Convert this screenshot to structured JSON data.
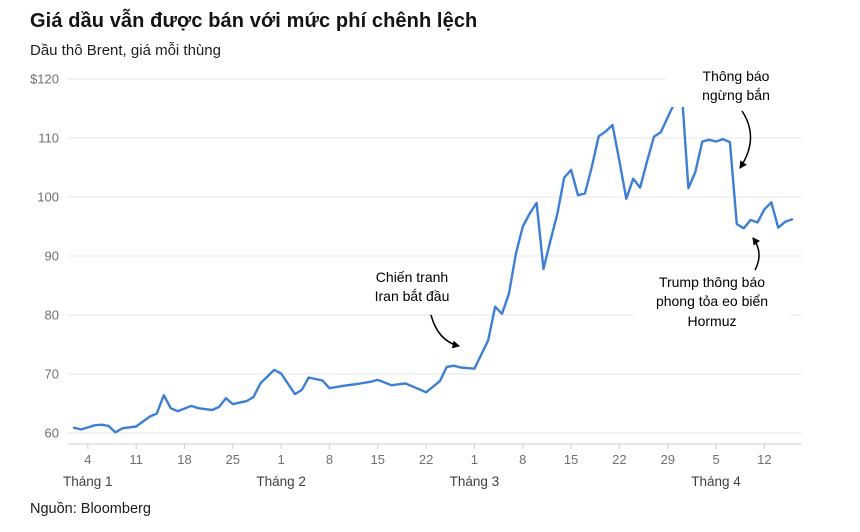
{
  "header": {
    "title": "Giá dầu vẫn được bán với mức phí chênh lệch",
    "subtitle": "Dầu thô Brent, giá mỗi thùng"
  },
  "footer": {
    "source": "Nguồn: Bloomberg"
  },
  "chart_data": {
    "type": "line",
    "title": "Giá dầu vẫn được bán với mức phí chênh lệch",
    "subtitle": "Dầu thô Brent, giá mỗi thùng",
    "ylabel": "USD per barrel",
    "ylim": [
      60,
      120
    ],
    "grid": true,
    "legend": false,
    "line_color": "#3e7fd6",
    "grid_color": "#e4e4e4",
    "axis_color": "#cfcfcf",
    "y_ticks": [
      {
        "value": 120,
        "label": "$120"
      },
      {
        "value": 110,
        "label": "110"
      },
      {
        "value": 100,
        "label": "100"
      },
      {
        "value": 90,
        "label": "90"
      },
      {
        "value": 80,
        "label": "80"
      },
      {
        "value": 70,
        "label": "70"
      },
      {
        "value": 60,
        "label": "60"
      }
    ],
    "x_ticks": [
      {
        "day": 4,
        "label": "4"
      },
      {
        "day": 11,
        "label": "11"
      },
      {
        "day": 18,
        "label": "18"
      },
      {
        "day": 25,
        "label": "25"
      },
      {
        "day": 32,
        "label": "1"
      },
      {
        "day": 39,
        "label": "8"
      },
      {
        "day": 46,
        "label": "15"
      },
      {
        "day": 53,
        "label": "22"
      },
      {
        "day": 60,
        "label": "1"
      },
      {
        "day": 67,
        "label": "8"
      },
      {
        "day": 74,
        "label": "15"
      },
      {
        "day": 81,
        "label": "22"
      },
      {
        "day": 88,
        "label": "29"
      },
      {
        "day": 95,
        "label": "5"
      },
      {
        "day": 102,
        "label": "12"
      }
    ],
    "month_labels": [
      {
        "day": 4,
        "label": "Tháng 1"
      },
      {
        "day": 32,
        "label": "Tháng 2"
      },
      {
        "day": 60,
        "label": "Tháng 3"
      },
      {
        "day": 95,
        "label": "Tháng 4"
      }
    ],
    "series": [
      {
        "name": "Brent crude, price per barrel (USD)",
        "points": [
          [
            2,
            60.9
          ],
          [
            3,
            60.6
          ],
          [
            5,
            61.3
          ],
          [
            6,
            61.4
          ],
          [
            7,
            61.2
          ],
          [
            8,
            60.1
          ],
          [
            9,
            60.8
          ],
          [
            11,
            61.1
          ],
          [
            13,
            62.8
          ],
          [
            14,
            63.3
          ],
          [
            15,
            66.4
          ],
          [
            16,
            64.2
          ],
          [
            17,
            63.7
          ],
          [
            19,
            64.6
          ],
          [
            20,
            64.2
          ],
          [
            22,
            63.9
          ],
          [
            23,
            64.4
          ],
          [
            24,
            65.9
          ],
          [
            25,
            64.9
          ],
          [
            27,
            65.4
          ],
          [
            28,
            66.1
          ],
          [
            29,
            68.4
          ],
          [
            31,
            70.7
          ],
          [
            32,
            70.1
          ],
          [
            34,
            66.6
          ],
          [
            35,
            67.3
          ],
          [
            36,
            69.4
          ],
          [
            38,
            68.9
          ],
          [
            39,
            67.6
          ],
          [
            41,
            68.0
          ],
          [
            43,
            68.3
          ],
          [
            45,
            68.7
          ],
          [
            46,
            69.0
          ],
          [
            48,
            68.1
          ],
          [
            50,
            68.4
          ],
          [
            52,
            67.4
          ],
          [
            53,
            66.9
          ],
          [
            55,
            68.8
          ],
          [
            56,
            71.2
          ],
          [
            57,
            71.4
          ],
          [
            58,
            71.1
          ],
          [
            59,
            71.0
          ],
          [
            60,
            70.9
          ],
          [
            61,
            73.3
          ],
          [
            62,
            75.7
          ],
          [
            63,
            81.4
          ],
          [
            64,
            80.2
          ],
          [
            65,
            83.6
          ],
          [
            66,
            90.3
          ],
          [
            67,
            95.0
          ],
          [
            68,
            97.2
          ],
          [
            69,
            99.0
          ],
          [
            70,
            87.8
          ],
          [
            71,
            92.6
          ],
          [
            72,
            97.1
          ],
          [
            73,
            103.3
          ],
          [
            74,
            104.6
          ],
          [
            75,
            100.3
          ],
          [
            76,
            100.6
          ],
          [
            77,
            105.1
          ],
          [
            78,
            110.3
          ],
          [
            79,
            111.1
          ],
          [
            80,
            112.2
          ],
          [
            81,
            106.1
          ],
          [
            82,
            99.7
          ],
          [
            83,
            103.1
          ],
          [
            84,
            101.6
          ],
          [
            85,
            106.0
          ],
          [
            86,
            110.2
          ],
          [
            87,
            111.0
          ],
          [
            88,
            113.5
          ],
          [
            90,
            118.5
          ],
          [
            91,
            101.5
          ],
          [
            92,
            104.2
          ],
          [
            93,
            109.4
          ],
          [
            94,
            109.7
          ],
          [
            95,
            109.4
          ],
          [
            96,
            109.8
          ],
          [
            97,
            109.3
          ],
          [
            98,
            95.4
          ],
          [
            99,
            94.7
          ],
          [
            100,
            96.1
          ],
          [
            101,
            95.7
          ],
          [
            102,
            97.9
          ],
          [
            103,
            99.1
          ],
          [
            104,
            94.8
          ],
          [
            105,
            95.8
          ],
          [
            106,
            96.2
          ]
        ]
      }
    ],
    "annotations": [
      {
        "lines": [
          "Chiến tranh",
          "Iran bắt đầu"
        ],
        "target": {
          "day": 59,
          "value": 75
        }
      },
      {
        "lines": [
          "Thông báo",
          "ngừng bắn"
        ],
        "target": {
          "day": 98,
          "value": 103
        }
      },
      {
        "lines": [
          "Trump thông báo",
          "phong tỏa eo biển",
          "Hormuz"
        ],
        "target": {
          "day": 100,
          "value": 94
        }
      }
    ]
  }
}
